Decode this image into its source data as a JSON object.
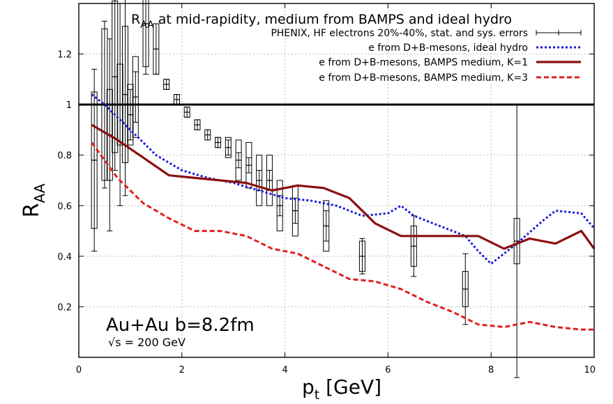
{
  "chart_data": {
    "type": "line",
    "title_main": "R",
    "title_sub": "AA",
    "title_rest": " at mid-rapidity, medium from BAMPS and ideal hydro",
    "xlabel_main": "p",
    "xlabel_sub": "t",
    "xlabel_rest": " [GeV]",
    "ylabel_main": "R",
    "ylabel_sub": "AA",
    "xlim": [
      0,
      10
    ],
    "ylim": [
      0,
      1.4
    ],
    "xticks": [
      "0",
      "2",
      "4",
      "6",
      "8",
      "10"
    ],
    "yticks": [
      "0.2",
      "0.4",
      "0.6",
      "0.8",
      "1",
      "1.2"
    ],
    "xtick_values": [
      0,
      2,
      4,
      6,
      8,
      10
    ],
    "ytick_values": [
      0.2,
      0.4,
      0.6,
      0.8,
      1.0,
      1.2
    ],
    "grid": true,
    "reference_line": 1.0,
    "legend_position": "top-right",
    "annotation_main": "Au+Au b=8.2fm",
    "annotation_sqrt": "√s",
    "annotation_energy": " = 200 GeV",
    "series": [
      {
        "name": "PHENIX, HF electrons 20%-40%, stat. and sys. errors",
        "kind": "errorbars",
        "color": "#000000",
        "points": [
          {
            "x": 0.3,
            "y": 0.78,
            "stat": 0.36,
            "sys": 0.27
          },
          {
            "x": 0.5,
            "y": 1.0,
            "stat": 0.33,
            "sys": 0.3
          },
          {
            "x": 0.6,
            "y": 0.88,
            "stat": 0.38,
            "sys": 0.18
          },
          {
            "x": 0.7,
            "y": 1.11,
            "stat": 0.37,
            "sys": 0.3
          },
          {
            "x": 0.8,
            "y": 1.0,
            "stat": 0.4,
            "sys": 0.16
          },
          {
            "x": 0.9,
            "y": 1.04,
            "stat": 0.4,
            "sys": 0.27
          },
          {
            "x": 1.0,
            "y": 0.96,
            "stat": 0.1,
            "sys": 0.12
          },
          {
            "x": 1.1,
            "y": 1.03,
            "stat": 0.1,
            "sys": 0.16
          },
          {
            "x": 1.3,
            "y": 1.32,
            "stat": 0.2,
            "sys": 0.17
          },
          {
            "x": 1.5,
            "y": 1.22,
            "stat": 0.1,
            "sys": 0.1
          },
          {
            "x": 1.7,
            "y": 1.08,
            "stat": 0.02,
            "sys": 0.02
          },
          {
            "x": 1.9,
            "y": 1.02,
            "stat": 0.02,
            "sys": 0.02
          },
          {
            "x": 2.1,
            "y": 0.97,
            "stat": 0.02,
            "sys": 0.02
          },
          {
            "x": 2.3,
            "y": 0.92,
            "stat": 0.02,
            "sys": 0.02
          },
          {
            "x": 2.5,
            "y": 0.88,
            "stat": 0.02,
            "sys": 0.02
          },
          {
            "x": 2.7,
            "y": 0.85,
            "stat": 0.02,
            "sys": 0.02
          },
          {
            "x": 2.9,
            "y": 0.83,
            "stat": 0.03,
            "sys": 0.04
          },
          {
            "x": 3.1,
            "y": 0.78,
            "stat": 0.03,
            "sys": 0.08
          },
          {
            "x": 3.3,
            "y": 0.76,
            "stat": 0.03,
            "sys": 0.09
          },
          {
            "x": 3.5,
            "y": 0.7,
            "stat": 0.04,
            "sys": 0.1
          },
          {
            "x": 3.7,
            "y": 0.7,
            "stat": 0.04,
            "sys": 0.1
          },
          {
            "x": 3.9,
            "y": 0.6,
            "stat": 0.04,
            "sys": 0.1
          },
          {
            "x": 4.2,
            "y": 0.58,
            "stat": 0.05,
            "sys": 0.1
          },
          {
            "x": 4.8,
            "y": 0.52,
            "stat": 0.06,
            "sys": 0.1
          },
          {
            "x": 5.5,
            "y": 0.4,
            "stat": 0.07,
            "sys": 0.06
          },
          {
            "x": 6.5,
            "y": 0.44,
            "stat": 0.12,
            "sys": 0.08
          },
          {
            "x": 7.5,
            "y": 0.27,
            "stat": 0.14,
            "sys": 0.07
          },
          {
            "x": 8.5,
            "y": 0.46,
            "stat": 0.54,
            "sys": 0.09
          }
        ]
      },
      {
        "name": "e from D+B-mesons, ideal hydro",
        "kind": "line",
        "color": "#1a1adb",
        "dash": "3,3",
        "width": 3,
        "x": [
          0.25,
          0.5,
          1.0,
          1.5,
          2.0,
          2.5,
          3.0,
          3.5,
          4.0,
          4.5,
          5.0,
          5.5,
          6.0,
          6.25,
          6.5,
          7.0,
          7.5,
          7.75,
          8.0,
          8.5,
          9.0,
          9.25,
          9.75,
          10.0
        ],
        "y": [
          1.04,
          1.0,
          0.9,
          0.8,
          0.74,
          0.71,
          0.69,
          0.66,
          0.63,
          0.62,
          0.6,
          0.56,
          0.57,
          0.6,
          0.56,
          0.52,
          0.48,
          0.42,
          0.37,
          0.45,
          0.54,
          0.58,
          0.57,
          0.51
        ]
      },
      {
        "name": "e from D+B-mesons, BAMPS medium, K=1",
        "kind": "line",
        "color": "#8b0f0f",
        "dash": "",
        "width": 3.2,
        "x": [
          0.25,
          0.75,
          1.25,
          1.75,
          2.25,
          2.75,
          3.25,
          3.75,
          4.25,
          4.75,
          5.25,
          5.75,
          6.25,
          6.75,
          7.25,
          7.75,
          8.25,
          8.75,
          9.25,
          9.75,
          10.0
        ],
        "y": [
          0.92,
          0.86,
          0.79,
          0.72,
          0.71,
          0.7,
          0.69,
          0.66,
          0.68,
          0.67,
          0.63,
          0.53,
          0.48,
          0.48,
          0.48,
          0.48,
          0.43,
          0.47,
          0.45,
          0.5,
          0.43
        ]
      },
      {
        "name": "e from D+B-mesons, BAMPS medium, K=3",
        "kind": "line",
        "color": "#e0201c",
        "dash": "7,4",
        "width": 3,
        "x": [
          0.25,
          0.75,
          1.25,
          1.75,
          2.25,
          2.75,
          3.25,
          3.75,
          4.25,
          4.75,
          5.25,
          5.75,
          6.25,
          6.75,
          7.25,
          7.75,
          8.25,
          8.75,
          9.25,
          9.75,
          10.0
        ],
        "y": [
          0.85,
          0.71,
          0.61,
          0.55,
          0.5,
          0.5,
          0.48,
          0.43,
          0.41,
          0.36,
          0.31,
          0.3,
          0.27,
          0.22,
          0.18,
          0.13,
          0.12,
          0.14,
          0.12,
          0.11,
          0.11
        ]
      }
    ]
  }
}
